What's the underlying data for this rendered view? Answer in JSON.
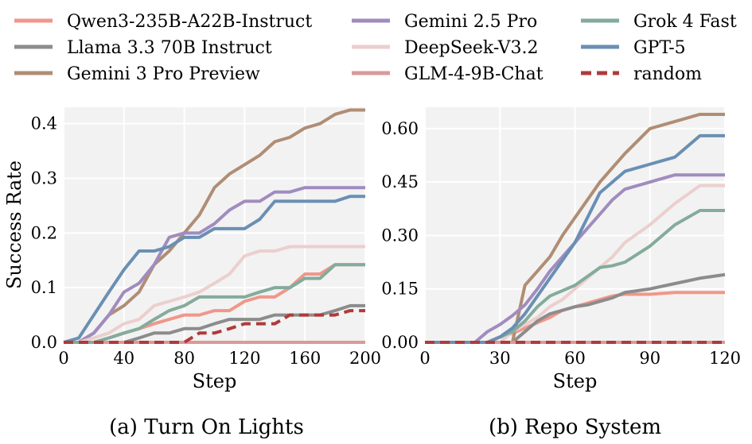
{
  "chart_data": [
    {
      "type": "line",
      "caption": "(a) Turn On Lights",
      "xlabel": "Step",
      "ylabel": "Success Rate",
      "xlim": [
        0,
        200
      ],
      "ylim": [
        0,
        0.43
      ],
      "xticks": [
        0,
        40,
        80,
        120,
        160,
        200
      ],
      "xtick_labels": [
        "0",
        "40",
        "80",
        "120",
        "160",
        "200"
      ],
      "yticks": [
        0,
        0.1,
        0.2,
        0.3,
        0.4
      ],
      "ytick_labels": [
        "0.0",
        "0.1",
        "0.2",
        "0.3",
        "0.4"
      ],
      "grid": true,
      "series": [
        {
          "name": "Qwen3-235B-A22B-Instruct",
          "color": "#f0978a",
          "x": [
            0,
            20,
            30,
            40,
            50,
            60,
            70,
            80,
            90,
            100,
            110,
            120,
            130,
            140,
            150,
            160,
            170,
            180,
            190,
            200
          ],
          "y": [
            0,
            0,
            0.008,
            0.017,
            0.025,
            0.034,
            0.042,
            0.05,
            0.05,
            0.058,
            0.058,
            0.075,
            0.083,
            0.083,
            0.1,
            0.125,
            0.125,
            0.142,
            0.142,
            0.142
          ]
        },
        {
          "name": "Llama 3.3 70B Instruct",
          "color": "#8c8c8c",
          "x": [
            0,
            40,
            50,
            60,
            70,
            80,
            90,
            100,
            110,
            120,
            130,
            140,
            150,
            160,
            170,
            180,
            190,
            200
          ],
          "y": [
            0,
            0,
            0.008,
            0.017,
            0.017,
            0.025,
            0.025,
            0.034,
            0.042,
            0.042,
            0.042,
            0.05,
            0.05,
            0.05,
            0.05,
            0.058,
            0.067,
            0.067
          ]
        },
        {
          "name": "Gemini 3 Pro Preview",
          "color": "#b08d74",
          "x": [
            0,
            10,
            20,
            30,
            40,
            50,
            60,
            70,
            80,
            90,
            100,
            110,
            120,
            130,
            140,
            150,
            160,
            170,
            180,
            190,
            200
          ],
          "y": [
            0,
            0,
            0.017,
            0.05,
            0.067,
            0.092,
            0.142,
            0.167,
            0.2,
            0.233,
            0.283,
            0.308,
            0.325,
            0.342,
            0.367,
            0.375,
            0.392,
            0.4,
            0.417,
            0.425,
            0.425
          ]
        },
        {
          "name": "Gemini 2.5 Pro",
          "color": "#a08cbf",
          "x": [
            0,
            10,
            20,
            30,
            40,
            50,
            60,
            70,
            80,
            90,
            100,
            110,
            120,
            130,
            140,
            150,
            160,
            170,
            180,
            190,
            200
          ],
          "y": [
            0,
            0,
            0.017,
            0.05,
            0.092,
            0.108,
            0.142,
            0.192,
            0.2,
            0.2,
            0.217,
            0.242,
            0.258,
            0.258,
            0.275,
            0.275,
            0.283,
            0.283,
            0.283,
            0.283,
            0.283
          ]
        },
        {
          "name": "DeepSeek-V3.2",
          "color": "#ebcfce",
          "x": [
            0,
            10,
            20,
            30,
            40,
            50,
            60,
            70,
            80,
            90,
            100,
            110,
            120,
            130,
            140,
            150,
            160,
            170,
            180,
            190,
            200
          ],
          "y": [
            0,
            0,
            0.008,
            0.017,
            0.034,
            0.042,
            0.067,
            0.075,
            0.083,
            0.092,
            0.108,
            0.125,
            0.158,
            0.167,
            0.167,
            0.175,
            0.175,
            0.175,
            0.175,
            0.175,
            0.175
          ]
        },
        {
          "name": "GLM-4-9B-Chat",
          "color": "#d99a9a",
          "x": [
            0,
            200
          ],
          "y": [
            0,
            0
          ]
        },
        {
          "name": "Grok 4 Fast",
          "color": "#84ab9b",
          "x": [
            0,
            20,
            30,
            40,
            50,
            60,
            70,
            80,
            90,
            100,
            110,
            120,
            130,
            140,
            150,
            160,
            170,
            180,
            190,
            200
          ],
          "y": [
            0,
            0,
            0.008,
            0.017,
            0.025,
            0.042,
            0.058,
            0.067,
            0.083,
            0.083,
            0.083,
            0.083,
            0.092,
            0.1,
            0.1,
            0.117,
            0.117,
            0.142,
            0.142,
            0.142
          ]
        },
        {
          "name": "GPT-5",
          "color": "#6a8fb4",
          "x": [
            0,
            10,
            20,
            30,
            40,
            50,
            60,
            70,
            80,
            90,
            100,
            110,
            120,
            130,
            140,
            150,
            160,
            170,
            180,
            190,
            200
          ],
          "y": [
            0,
            0.008,
            0.05,
            0.092,
            0.133,
            0.167,
            0.167,
            0.175,
            0.192,
            0.192,
            0.208,
            0.208,
            0.208,
            0.225,
            0.258,
            0.258,
            0.258,
            0.258,
            0.258,
            0.267,
            0.267
          ]
        },
        {
          "name": "random",
          "color": "#b03a3a",
          "dashed": true,
          "x": [
            0,
            80,
            90,
            100,
            110,
            120,
            130,
            140,
            150,
            160,
            170,
            180,
            190,
            200
          ],
          "y": [
            0,
            0,
            0.017,
            0.017,
            0.025,
            0.034,
            0.034,
            0.034,
            0.05,
            0.05,
            0.05,
            0.05,
            0.058,
            0.058
          ]
        }
      ]
    },
    {
      "type": "line",
      "caption": "(b) Repo System",
      "xlabel": "Step",
      "ylabel": "",
      "xlim": [
        0,
        120
      ],
      "ylim": [
        0,
        0.66
      ],
      "xticks": [
        0,
        30,
        60,
        90,
        120
      ],
      "xtick_labels": [
        "0",
        "30",
        "60",
        "90",
        "120"
      ],
      "yticks": [
        0,
        0.15,
        0.3,
        0.45,
        0.6
      ],
      "ytick_labels": [
        "0.00",
        "0.15",
        "0.30",
        "0.45",
        "0.60"
      ],
      "grid": true,
      "series": [
        {
          "name": "Qwen3-235B-A22B-Instruct",
          "color": "#f0978a",
          "x": [
            0,
            25,
            30,
            35,
            40,
            45,
            50,
            55,
            60,
            65,
            70,
            75,
            80,
            90,
            100,
            110,
            120
          ],
          "y": [
            0,
            0,
            0.015,
            0.025,
            0.04,
            0.055,
            0.07,
            0.09,
            0.1,
            0.11,
            0.12,
            0.13,
            0.135,
            0.135,
            0.14,
            0.14,
            0.14
          ]
        },
        {
          "name": "Llama 3.3 70B Instruct",
          "color": "#8c8c8c",
          "x": [
            0,
            35,
            40,
            45,
            50,
            55,
            60,
            65,
            70,
            75,
            80,
            90,
            100,
            110,
            120
          ],
          "y": [
            0,
            0,
            0.03,
            0.06,
            0.08,
            0.09,
            0.1,
            0.105,
            0.115,
            0.125,
            0.14,
            0.15,
            0.165,
            0.18,
            0.19
          ]
        },
        {
          "name": "Gemini 3 Pro Preview",
          "color": "#b08d74",
          "x": [
            0,
            35,
            40,
            45,
            50,
            55,
            60,
            65,
            70,
            75,
            80,
            90,
            100,
            110,
            120
          ],
          "y": [
            0,
            0,
            0.16,
            0.2,
            0.24,
            0.3,
            0.35,
            0.4,
            0.45,
            0.49,
            0.53,
            0.6,
            0.62,
            0.64,
            0.64
          ]
        },
        {
          "name": "Gemini 2.5 Pro",
          "color": "#a08cbf",
          "x": [
            0,
            20,
            25,
            30,
            35,
            40,
            45,
            50,
            55,
            60,
            65,
            70,
            75,
            80,
            90,
            100,
            110,
            120
          ],
          "y": [
            0,
            0,
            0.03,
            0.05,
            0.075,
            0.105,
            0.15,
            0.2,
            0.24,
            0.28,
            0.32,
            0.36,
            0.4,
            0.43,
            0.45,
            0.47,
            0.47,
            0.47
          ]
        },
        {
          "name": "DeepSeek-V3.2",
          "color": "#ebcfce",
          "x": [
            0,
            30,
            35,
            40,
            45,
            50,
            55,
            60,
            65,
            70,
            75,
            80,
            90,
            100,
            110,
            120
          ],
          "y": [
            0,
            0,
            0.03,
            0.05,
            0.07,
            0.1,
            0.12,
            0.15,
            0.18,
            0.21,
            0.24,
            0.28,
            0.33,
            0.39,
            0.44,
            0.44
          ]
        },
        {
          "name": "GLM-4-9B-Chat",
          "color": "#d99a9a",
          "x": [
            0,
            120
          ],
          "y": [
            0,
            0
          ]
        },
        {
          "name": "Grok 4 Fast",
          "color": "#84ab9b",
          "x": [
            0,
            25,
            30,
            35,
            40,
            45,
            50,
            55,
            60,
            65,
            70,
            75,
            80,
            90,
            100,
            110,
            120
          ],
          "y": [
            0,
            0,
            0.015,
            0.03,
            0.06,
            0.1,
            0.13,
            0.145,
            0.16,
            0.185,
            0.21,
            0.215,
            0.225,
            0.27,
            0.33,
            0.37,
            0.37
          ]
        },
        {
          "name": "GPT-5",
          "color": "#6a8fb4",
          "x": [
            0,
            25,
            30,
            35,
            40,
            45,
            50,
            55,
            60,
            65,
            70,
            75,
            80,
            90,
            100,
            110,
            120
          ],
          "y": [
            0,
            0,
            0.015,
            0.04,
            0.08,
            0.13,
            0.18,
            0.23,
            0.28,
            0.35,
            0.42,
            0.45,
            0.48,
            0.5,
            0.52,
            0.58,
            0.58
          ]
        },
        {
          "name": "random",
          "color": "#b03a3a",
          "dashed": true,
          "x": [
            0,
            120
          ],
          "y": [
            0,
            0
          ]
        }
      ]
    }
  ],
  "legend": {
    "placement": "top",
    "entries": [
      {
        "name": "Qwen3-235B-A22B-Instruct",
        "color": "#f0978a",
        "dashed": false
      },
      {
        "name": "Llama 3.3 70B Instruct",
        "color": "#8c8c8c",
        "dashed": false
      },
      {
        "name": "Gemini 3 Pro Preview",
        "color": "#b08d74",
        "dashed": false
      },
      {
        "name": "Gemini 2.5 Pro",
        "color": "#a08cbf",
        "dashed": false
      },
      {
        "name": "DeepSeek-V3.2",
        "color": "#ebcfce",
        "dashed": false
      },
      {
        "name": "GLM-4-9B-Chat",
        "color": "#d99a9a",
        "dashed": false
      },
      {
        "name": "Grok 4 Fast",
        "color": "#84ab9b",
        "dashed": false
      },
      {
        "name": "GPT-5",
        "color": "#6a8fb4",
        "dashed": false
      },
      {
        "name": "random",
        "color": "#b03a3a",
        "dashed": true
      }
    ]
  },
  "colors": {
    "plot_background": "#f2f2f2",
    "grid": "#ffffff"
  }
}
